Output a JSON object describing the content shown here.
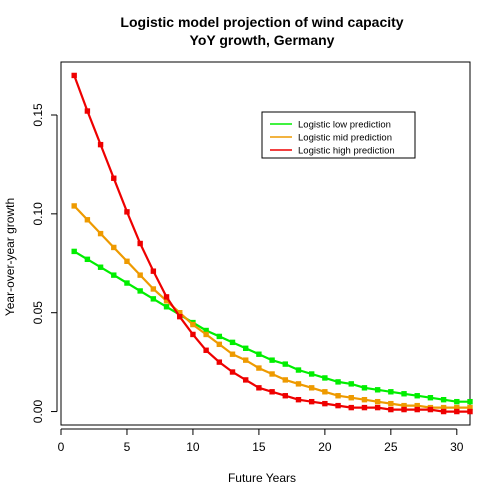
{
  "chart_data": {
    "type": "line",
    "title_line1": "Logistic model projection of wind capacity",
    "title_line2": "YoY growth, Germany",
    "xlabel": "Future Years",
    "ylabel": "Year-over-year growth",
    "xlim": [
      0,
      31
    ],
    "ylim": [
      -0.0068,
      0.1768
    ],
    "xticks": [
      "0",
      "5",
      "10",
      "15",
      "20",
      "25",
      "30"
    ],
    "yticks": [
      "0.00",
      "0.05",
      "0.10",
      "0.15"
    ],
    "grid": false,
    "legend_position": "top-right",
    "x": [
      1,
      2,
      3,
      4,
      5,
      6,
      7,
      8,
      9,
      10,
      11,
      12,
      13,
      14,
      15,
      16,
      17,
      18,
      19,
      20,
      21,
      22,
      23,
      24,
      25,
      26,
      27,
      28,
      29,
      30,
      31
    ],
    "series": [
      {
        "name": "Logistic low prediction",
        "color": "#00ee00",
        "values": [
          0.081,
          0.077,
          0.073,
          0.069,
          0.065,
          0.061,
          0.057,
          0.053,
          0.049,
          0.045,
          0.041,
          0.038,
          0.035,
          0.032,
          0.029,
          0.026,
          0.024,
          0.021,
          0.019,
          0.017,
          0.015,
          0.014,
          0.012,
          0.011,
          0.01,
          0.009,
          0.008,
          0.007,
          0.006,
          0.005,
          0.005
        ]
      },
      {
        "name": "Logistic mid prediction",
        "color": "#ee9a00",
        "values": [
          0.104,
          0.097,
          0.09,
          0.083,
          0.076,
          0.069,
          0.062,
          0.056,
          0.05,
          0.044,
          0.039,
          0.034,
          0.029,
          0.026,
          0.022,
          0.019,
          0.016,
          0.014,
          0.012,
          0.01,
          0.008,
          0.007,
          0.006,
          0.005,
          0.004,
          0.003,
          0.003,
          0.002,
          0.002,
          0.002,
          0.002
        ]
      },
      {
        "name": "Logistic high prediction",
        "color": "#ee0000",
        "values": [
          0.17,
          0.152,
          0.135,
          0.118,
          0.101,
          0.085,
          0.071,
          0.058,
          0.048,
          0.039,
          0.031,
          0.025,
          0.02,
          0.016,
          0.012,
          0.01,
          0.008,
          0.006,
          0.005,
          0.004,
          0.003,
          0.002,
          0.002,
          0.002,
          0.001,
          0.001,
          0.001,
          0.001,
          0.0,
          0.0,
          0.0
        ]
      }
    ]
  }
}
